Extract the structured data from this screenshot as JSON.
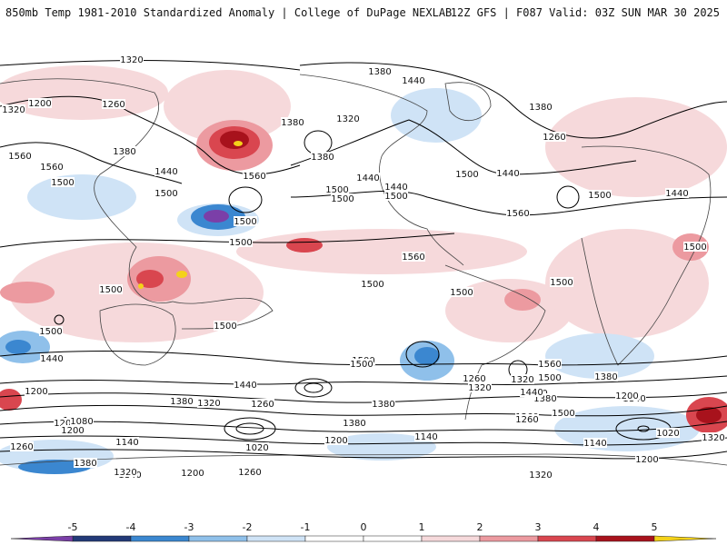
{
  "header": {
    "left": "850mb Temp 1981-2010 Standardized Anomaly | College of DuPage NEXLAB",
    "right": "12Z GFS | F087 Valid: 03Z SUN MAR 30 2025"
  },
  "colors": {
    "neg5": "#7b3fa8",
    "neg4": "#233a78",
    "neg3": "#3b87d0",
    "neg2": "#8fc0ea",
    "neg1": "#cfe3f6",
    "zero": "#ffffff",
    "pos1": "#f6d9db",
    "pos2": "#ec9aa0",
    "pos3": "#d9464f",
    "pos4": "#a8121c",
    "pos5": "#f4d21a",
    "contour": "#000000",
    "borders": "#444444"
  },
  "colorbar": {
    "ticks": [
      "-5",
      "-4",
      "-3",
      "-2",
      "-1",
      "0",
      "1",
      "2",
      "3",
      "4",
      "5"
    ]
  },
  "contour_labels": [
    "1320",
    "1380",
    "1440",
    "1260",
    "1200",
    "1320",
    "1380",
    "1320",
    "1380",
    "1380",
    "1260",
    "1560",
    "1560",
    "1500",
    "1380",
    "1440",
    "1500",
    "1560",
    "1500",
    "1500",
    "1440",
    "1440",
    "1500",
    "1500",
    "1440",
    "1560",
    "1500",
    "1440",
    "1500",
    "1500",
    "1500",
    "1500",
    "1500",
    "1500",
    "1500",
    "1500",
    "1500",
    "1440",
    "1560",
    "1500",
    "1380",
    "1320",
    "1200",
    "1440",
    "1380",
    "1320",
    "1260",
    "1260",
    "1140",
    "1080",
    "1200",
    "1020",
    "1140",
    "1200",
    "1260",
    "1380",
    "1320",
    "1260",
    "1200",
    "1140",
    "1200",
    "1260",
    "1320",
    "1500",
    "1440",
    "1380",
    "1320",
    "1260",
    "1200",
    "1140",
    "1080",
    "1020",
    "1140",
    "1200",
    "1380",
    "1560",
    "1500",
    "1440",
    "1380",
    "1320",
    "1500"
  ]
}
